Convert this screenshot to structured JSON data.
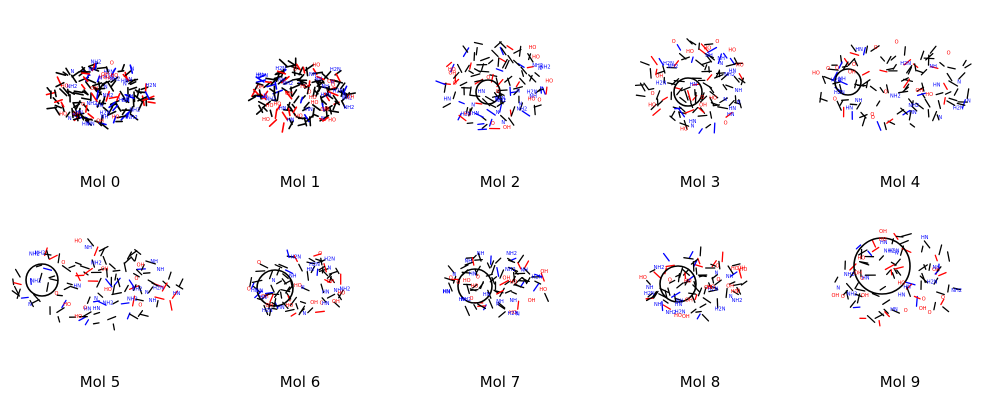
{
  "grid": {
    "molecules": [
      {
        "label": "Mol 0",
        "ring": false,
        "ring_size": "none",
        "layout": "compact"
      },
      {
        "label": "Mol 1",
        "ring": false,
        "ring_size": "none",
        "layout": "compact"
      },
      {
        "label": "Mol 2",
        "ring": true,
        "ring_size": "medium",
        "layout": "branched"
      },
      {
        "label": "Mol 3",
        "ring": true,
        "ring_size": "medium",
        "layout": "branched"
      },
      {
        "label": "Mol 4",
        "ring": true,
        "ring_size": "medium",
        "layout": "extended"
      },
      {
        "label": "Mol 5",
        "ring": true,
        "ring_size": "medium",
        "layout": "extended"
      },
      {
        "label": "Mol 6",
        "ring": true,
        "ring_size": "medium",
        "layout": "macrocycle"
      },
      {
        "label": "Mol 7",
        "ring": true,
        "ring_size": "medium",
        "layout": "macrocycle"
      },
      {
        "label": "Mol 8",
        "ring": true,
        "ring_size": "medium",
        "layout": "macrocycle"
      },
      {
        "label": "Mol 9",
        "ring": true,
        "ring_size": "large",
        "layout": "macrocycle"
      }
    ],
    "atom_labels": {
      "nitrogen": [
        "NH",
        "NH2",
        "H2N",
        "N",
        "HN"
      ],
      "oxygen": [
        "O",
        "OH",
        "HO"
      ]
    },
    "colors": {
      "bond": "#000000",
      "nitrogen": "#0000ff",
      "oxygen": "#ff0000",
      "background": "#ffffff"
    }
  }
}
